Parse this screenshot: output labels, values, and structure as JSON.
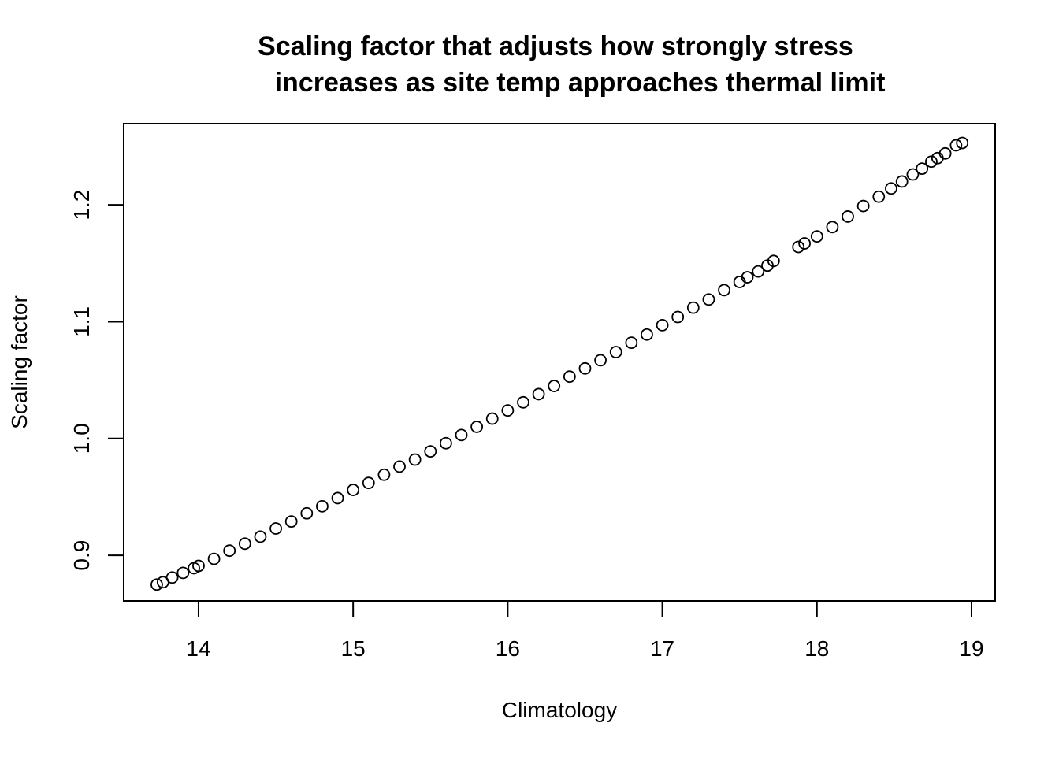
{
  "chart_data": {
    "type": "scatter",
    "title": [
      "Scaling factor that adjusts how strongly stress",
      "increases as site temp approaches thermal limit"
    ],
    "x_label": "Climatology",
    "y_label": "Scaling factor",
    "color": "#000000",
    "x": [
      13.73,
      13.77,
      13.83,
      13.9,
      13.97,
      14.0,
      14.1,
      14.2,
      14.3,
      14.4,
      14.5,
      14.6,
      14.7,
      14.8,
      14.9,
      15.0,
      15.1,
      15.2,
      15.3,
      15.4,
      15.5,
      15.6,
      15.7,
      15.8,
      15.9,
      16.0,
      16.1,
      16.2,
      16.3,
      16.4,
      16.5,
      16.6,
      16.7,
      16.8,
      16.9,
      17.0,
      17.1,
      17.2,
      17.3,
      17.4,
      17.5,
      17.55,
      17.62,
      17.68,
      17.72,
      17.88,
      17.92,
      18.0,
      18.1,
      18.2,
      18.3,
      18.4,
      18.48,
      18.55,
      18.62,
      18.68,
      18.74,
      18.78,
      18.83,
      18.9,
      18.94
    ],
    "values": [
      0.875,
      0.877,
      0.881,
      0.885,
      0.889,
      0.891,
      0.897,
      0.904,
      0.91,
      0.916,
      0.923,
      0.929,
      0.936,
      0.942,
      0.949,
      0.956,
      0.962,
      0.969,
      0.976,
      0.982,
      0.989,
      0.996,
      1.003,
      1.01,
      1.017,
      1.024,
      1.031,
      1.038,
      1.045,
      1.053,
      1.06,
      1.067,
      1.074,
      1.082,
      1.089,
      1.097,
      1.104,
      1.112,
      1.119,
      1.127,
      1.134,
      1.138,
      1.143,
      1.148,
      1.152,
      1.164,
      1.167,
      1.173,
      1.181,
      1.19,
      1.199,
      1.207,
      1.214,
      1.22,
      1.226,
      1.231,
      1.237,
      1.24,
      1.244,
      1.251,
      1.253
    ],
    "xlim": [
      13.516,
      19.153
    ],
    "ylim": [
      0.861,
      1.2695
    ],
    "xticks": [
      14,
      15,
      16,
      17,
      18,
      19
    ],
    "yticks": [
      0.9,
      {
        "value": 1,
        "label": "1.0"
      },
      1.1,
      1.2
    ]
  }
}
